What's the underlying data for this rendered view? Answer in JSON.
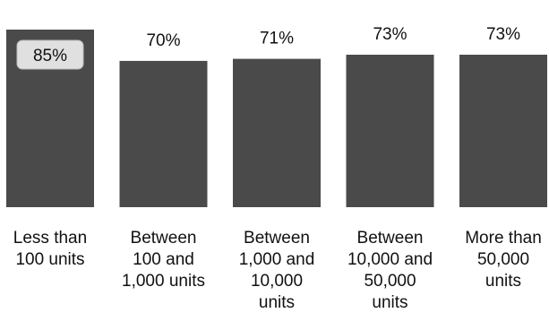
{
  "chart_data": {
    "type": "bar",
    "categories": [
      "Less than\n100 units",
      "Between\n100 and\n1,000 units",
      "Between\n1,000 and\n10,000\nunits",
      "Between\n10,000 and\n50,000\nunits",
      "More than\n50,000\nunits"
    ],
    "values": [
      85,
      70,
      71,
      73,
      73
    ],
    "data_labels": [
      "85%",
      "70%",
      "71%",
      "73%",
      "73%"
    ],
    "title": "",
    "xlabel": "",
    "ylabel": "",
    "ylim": [
      0,
      85
    ],
    "grid": false,
    "legend": "none",
    "colors": {
      "bar": "#4a4a4a",
      "highlight_label_bg": "#e0e0e0",
      "highlight_label_border": "#bdbdbd",
      "text": "#111111"
    }
  }
}
